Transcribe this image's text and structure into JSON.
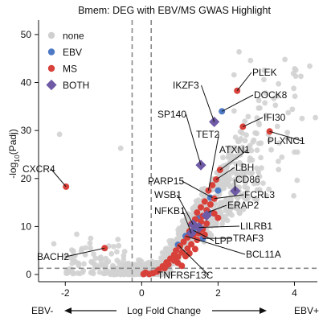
{
  "chart_data": {
    "type": "scatter",
    "title": "Bmem: DEG with EBV/MS GWAS Highlight",
    "xlabel": "Log Fold Change",
    "ylabel_main": "-log",
    "ylabel_sub": "10",
    "ylabel_tail": "(Padj)",
    "xlim": [
      -2.7,
      4.6
    ],
    "ylim": [
      -1.5,
      53
    ],
    "xticks": [
      -2,
      0,
      2,
      4
    ],
    "yticks": [
      0,
      10,
      20,
      30,
      40,
      50
    ],
    "xlabel_left": "EBV-",
    "xlabel_right": "EBV+",
    "thresholds": {
      "x": [
        -0.25,
        0.25
      ],
      "y": 1.3
    },
    "legend": {
      "placement": "top-left",
      "entries": [
        {
          "label": "none",
          "color": "#cfcfcf",
          "marker": "circle"
        },
        {
          "label": "EBV",
          "color": "#4e79c4",
          "marker": "circle"
        },
        {
          "label": "MS",
          "color": "#d8403a",
          "marker": "circle"
        },
        {
          "label": "BOTH",
          "color": "#6f5aa6",
          "marker": "diamond"
        }
      ]
    },
    "colors": {
      "none": "#d2d2d2",
      "EBV": "#4e79c4",
      "MS": "#d8403a",
      "BOTH": "#6f5aa6",
      "threshold": "#888888"
    },
    "series": [
      {
        "name": "EBV",
        "points": [
          [
            2.1,
            34.0
          ],
          [
            1.75,
            13.0
          ],
          [
            2.0,
            17.5
          ],
          [
            1.5,
            11.8
          ],
          [
            1.15,
            8.0
          ],
          [
            1.35,
            9.2
          ],
          [
            1.6,
            7.5
          ],
          [
            0.95,
            6.2
          ],
          [
            1.8,
            16.0
          ]
        ]
      },
      {
        "name": "MS",
        "points": [
          [
            2.5,
            38.3
          ],
          [
            2.65,
            30.8
          ],
          [
            3.35,
            29.8
          ],
          [
            2.05,
            21.8
          ],
          [
            -1.98,
            18.3
          ],
          [
            -0.97,
            5.5
          ],
          [
            1.95,
            19.8
          ],
          [
            1.85,
            18.6
          ],
          [
            1.75,
            17.5
          ],
          [
            1.9,
            15.8
          ],
          [
            1.65,
            15.2
          ],
          [
            1.8,
            14.6
          ],
          [
            1.55,
            14.0
          ],
          [
            1.7,
            13.4
          ],
          [
            1.45,
            12.9
          ],
          [
            1.6,
            12.2
          ],
          [
            1.4,
            11.5
          ],
          [
            1.55,
            11.0
          ],
          [
            1.3,
            10.5
          ],
          [
            1.45,
            10.0
          ],
          [
            1.6,
            9.5
          ],
          [
            1.25,
            9.0
          ],
          [
            1.5,
            8.6
          ],
          [
            1.35,
            8.1
          ],
          [
            1.2,
            7.7
          ],
          [
            1.45,
            7.2
          ],
          [
            1.1,
            6.8
          ],
          [
            1.3,
            6.3
          ],
          [
            1.0,
            5.9
          ],
          [
            1.2,
            5.4
          ],
          [
            0.9,
            5.0
          ],
          [
            1.05,
            4.6
          ],
          [
            0.85,
            4.1
          ],
          [
            0.95,
            3.7
          ],
          [
            0.75,
            3.3
          ],
          [
            0.85,
            2.9
          ],
          [
            0.65,
            2.5
          ],
          [
            0.7,
            2.1
          ],
          [
            0.55,
            1.7
          ],
          [
            0.6,
            1.3
          ],
          [
            0.45,
            1.0
          ],
          [
            0.4,
            0.6
          ],
          [
            0.3,
            0.3
          ],
          [
            0.2,
            0.1
          ],
          [
            0.05,
            0.1
          ],
          [
            0.1,
            0.4
          ],
          [
            1.4,
            5.3
          ],
          [
            1.25,
            4.4
          ],
          [
            1.15,
            3.8
          ],
          [
            0.95,
            2.4
          ],
          [
            1.7,
            10.6
          ],
          [
            1.9,
            12.7
          ],
          [
            2.0,
            11.8
          ],
          [
            1.65,
            8.3
          ],
          [
            1.05,
            1.8
          ]
        ]
      },
      {
        "name": "BOTH",
        "points": [
          [
            1.9,
            31.8
          ],
          [
            1.55,
            22.8
          ],
          [
            2.45,
            17.4
          ],
          [
            1.7,
            12.3
          ],
          [
            1.35,
            10.4
          ],
          [
            1.5,
            9.8
          ],
          [
            1.3,
            8.6
          ]
        ]
      }
    ],
    "annotations": [
      {
        "label": "PLEK",
        "x": 2.5,
        "y": 38.3
      },
      {
        "label": "IKZF3",
        "x": 1.9,
        "y": 31.8
      },
      {
        "label": "DOCK8",
        "x": 2.1,
        "y": 34.0
      },
      {
        "label": "IFI30",
        "x": 2.65,
        "y": 30.8
      },
      {
        "label": "SP140",
        "x": 1.55,
        "y": 22.8
      },
      {
        "label": "PLXNC1",
        "x": 3.35,
        "y": 29.8
      },
      {
        "label": "TET2",
        "x": 1.75,
        "y": 17.5
      },
      {
        "label": "ATXN1",
        "x": 2.05,
        "y": 21.8
      },
      {
        "label": "CXCR4",
        "x": -1.98,
        "y": 18.3
      },
      {
        "label": "LBH",
        "x": 1.95,
        "y": 19.8
      },
      {
        "label": "CD86",
        "x": 2.45,
        "y": 17.4
      },
      {
        "label": "PARP15",
        "x": 1.85,
        "y": 16.0
      },
      {
        "label": "FCRL3",
        "x": 1.9,
        "y": 15.8
      },
      {
        "label": "WSB1",
        "x": 1.35,
        "y": 10.4
      },
      {
        "label": "ERAP2",
        "x": 1.75,
        "y": 13.0
      },
      {
        "label": "NFKB1",
        "x": 1.3,
        "y": 8.6
      },
      {
        "label": "LILRB1",
        "x": 1.5,
        "y": 9.8
      },
      {
        "label": "TRAF3",
        "x": 1.6,
        "y": 7.5
      },
      {
        "label": "LPP",
        "x": 1.35,
        "y": 9.2
      },
      {
        "label": "BACH2",
        "x": -0.97,
        "y": 5.5
      },
      {
        "label": "BCL11A",
        "x": 1.15,
        "y": 8.0
      },
      {
        "label": "TNFRSF13C",
        "x": 0.95,
        "y": 6.2
      }
    ]
  }
}
